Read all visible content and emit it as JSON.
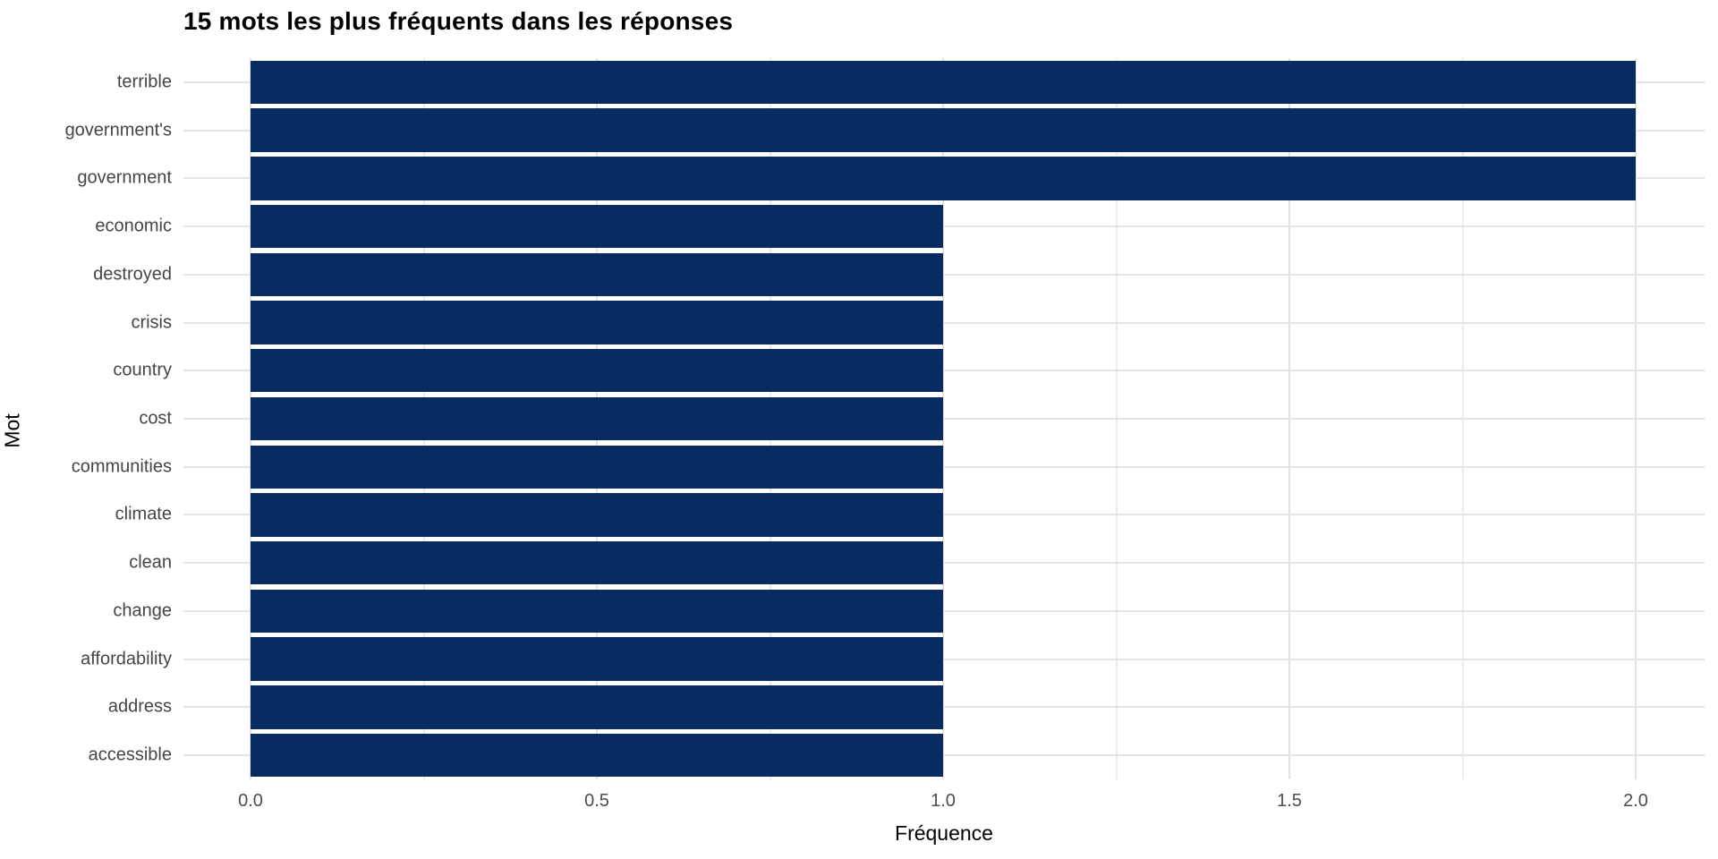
{
  "chart_data": {
    "type": "bar",
    "orientation": "horizontal",
    "title": "15 mots les plus fréquents dans les réponses",
    "xlabel": "Fréquence",
    "ylabel": "Mot",
    "categories": [
      "terrible",
      "government's",
      "government",
      "economic",
      "destroyed",
      "crisis",
      "country",
      "cost",
      "communities",
      "climate",
      "clean",
      "change",
      "affordability",
      "address",
      "accessible"
    ],
    "values": [
      2,
      2,
      2,
      1,
      1,
      1,
      1,
      1,
      1,
      1,
      1,
      1,
      1,
      1,
      1
    ],
    "xlim": [
      -0.1,
      2.1
    ],
    "x_ticks": [
      0.0,
      0.5,
      1.0,
      1.5,
      2.0
    ],
    "x_tick_labels": [
      "0.0",
      "0.5",
      "1.0",
      "1.5",
      "2.0"
    ],
    "x_minor_ticks": [
      0.25,
      0.75,
      1.25,
      1.75
    ],
    "grid": "major-and-minor-x, major-y",
    "legend": "none",
    "bar_relative_width": 0.9,
    "colors": {
      "bar": "#082c61",
      "grid_major": "#e2e2e2",
      "grid_minor": "#ececec",
      "axis_text": "#4d4d4d",
      "category_text": "#454545",
      "title_text": "#000000",
      "background": "#ffffff"
    }
  }
}
